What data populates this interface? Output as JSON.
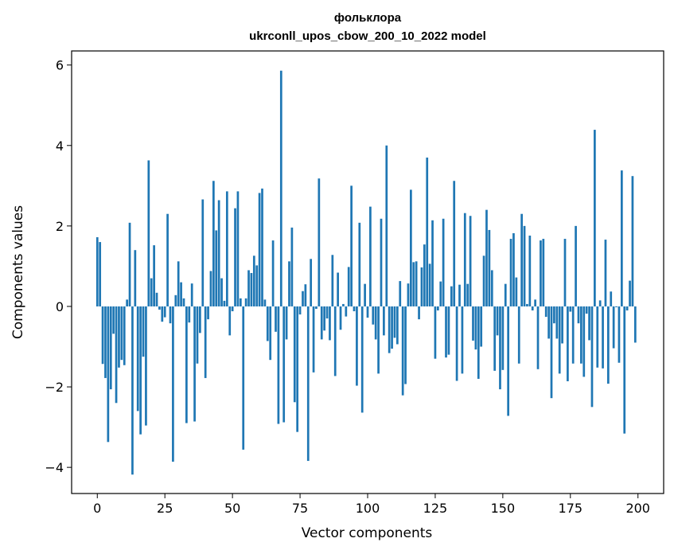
{
  "chart_data": {
    "type": "bar",
    "title_line1": "фольклора",
    "title_line2": "ukrconll_upos_cbow_200_10_2022 model",
    "xlabel": "Vector components",
    "ylabel": "Components values",
    "xlim": [
      -9.5,
      209.5
    ],
    "ylim": [
      -4.65,
      6.35
    ],
    "xticks": [
      0,
      25,
      50,
      75,
      100,
      125,
      150,
      175,
      200
    ],
    "yticks": [
      -4,
      -2,
      0,
      2,
      4,
      6
    ],
    "bar_color": "#1f77b4",
    "grid": false,
    "values": [
      1.72,
      1.6,
      -1.43,
      -1.78,
      -3.37,
      -2.06,
      -0.68,
      -2.4,
      -1.52,
      -1.33,
      -1.46,
      0.17,
      2.08,
      -4.18,
      1.4,
      -2.6,
      -3.18,
      -1.25,
      -2.96,
      3.63,
      0.7,
      1.52,
      0.34,
      -0.08,
      -0.38,
      -0.27,
      2.3,
      -0.42,
      -3.86,
      0.28,
      1.12,
      0.6,
      0.2,
      -2.9,
      -0.4,
      0.57,
      -2.86,
      -1.42,
      -0.66,
      2.66,
      -1.78,
      -0.32,
      0.88,
      3.12,
      1.89,
      2.64,
      0.7,
      0.14,
      2.86,
      -0.72,
      -0.12,
      2.44,
      2.86,
      0.2,
      -3.56,
      0.2,
      0.9,
      0.83,
      1.26,
      1.02,
      2.82,
      2.93,
      0.17,
      -0.86,
      -1.33,
      1.64,
      -0.63,
      -2.92,
      5.86,
      -2.88,
      -0.82,
      1.12,
      1.96,
      -2.38,
      -3.12,
      -0.2,
      0.38,
      0.55,
      -3.84,
      1.18,
      -1.64,
      -0.06,
      3.18,
      -0.82,
      -0.6,
      -0.3,
      -0.84,
      1.28,
      -1.73,
      0.84,
      -0.58,
      0.06,
      -0.25,
      0.98,
      3.0,
      -0.12,
      -1.97,
      2.08,
      -2.64,
      0.56,
      -0.28,
      2.48,
      -0.45,
      -0.82,
      -1.67,
      2.18,
      -0.72,
      4.0,
      -1.16,
      -1.05,
      -0.78,
      -0.94,
      0.63,
      -2.21,
      -1.93,
      0.57,
      2.9,
      1.1,
      1.12,
      -0.32,
      0.97,
      1.54,
      3.7,
      1.06,
      2.14,
      -1.3,
      -0.1,
      0.62,
      2.18,
      -1.27,
      -1.2,
      0.5,
      3.12,
      -1.85,
      0.54,
      -1.67,
      2.32,
      0.56,
      2.25,
      -0.85,
      -1.07,
      -1.8,
      -1.0,
      1.26,
      2.4,
      1.9,
      0.9,
      -1.6,
      -0.72,
      -2.06,
      -1.58,
      0.56,
      -2.72,
      1.68,
      1.82,
      0.72,
      -1.42,
      2.3,
      2.0,
      0.06,
      1.76,
      -0.1,
      0.17,
      -1.56,
      1.64,
      1.68,
      -0.26,
      -0.8,
      -2.28,
      -0.42,
      -0.8,
      -1.67,
      -0.92,
      1.68,
      -1.86,
      -0.13,
      -1.42,
      2.0,
      -0.42,
      -1.42,
      -1.75,
      -0.18,
      -0.84,
      -2.5,
      4.39,
      -1.52,
      0.15,
      -1.54,
      1.66,
      -1.92,
      0.37,
      -1.04,
      -0.02,
      -1.4,
      3.38,
      -3.16,
      -0.1,
      0.64,
      3.24,
      -0.9
    ]
  }
}
